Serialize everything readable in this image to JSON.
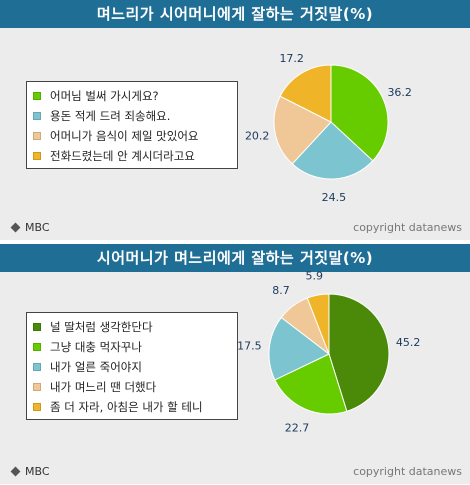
{
  "chart_data": [
    {
      "type": "pie",
      "title": "며느리가 시어머니에게 잘하는 거짓말(%)",
      "categories": [
        "어머님 벌써 가시게요?",
        "용돈 적게 드려 죄송해요.",
        "어머니가 음식이 제일 맛있어요",
        "전화드렸는데 안 계시더라고요"
      ],
      "values": [
        36.2,
        24.5,
        20.2,
        17.2
      ],
      "value_labels": [
        "36.2",
        "24.5",
        "20.2",
        "17.2"
      ],
      "colors": [
        "#66cc00",
        "#7cc4cf",
        "#f0c898",
        "#f0b428"
      ],
      "legend_placement": "left"
    },
    {
      "type": "pie",
      "title": "시어머니가 며느리에게 잘하는 거짓말(%)",
      "categories": [
        "널 딸처럼 생각한단다",
        "그냥 대충 먹자꾸나",
        "내가 얼른 죽어야지",
        "내가 며느리 땐 더했다",
        "좀 더 자라, 아침은 내가 할 테니"
      ],
      "values": [
        45.2,
        22.7,
        17.5,
        8.7,
        5.9
      ],
      "value_labels": [
        "45.2",
        "22.7",
        "17.5",
        "8.7",
        "5.9"
      ],
      "colors": [
        "#4a8a08",
        "#66cc00",
        "#7cc4cf",
        "#f0c898",
        "#f0b428"
      ],
      "legend_placement": "left"
    }
  ],
  "source": "MBC",
  "credit": "copyright datanews"
}
